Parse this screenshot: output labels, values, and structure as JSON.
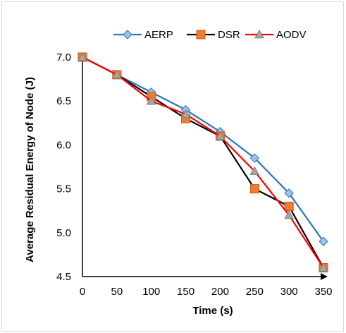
{
  "chart_data": {
    "type": "line",
    "xlabel": "Time (s)",
    "ylabel": "Average Residual Energy  of Node  (J)",
    "x": [
      0,
      50,
      100,
      150,
      200,
      250,
      300,
      350
    ],
    "xlim": [
      0,
      350
    ],
    "ylim": [
      4.5,
      7.0
    ],
    "x_ticks": [
      "0",
      "50",
      "100",
      "150",
      "200",
      "250",
      "300",
      "350"
    ],
    "y_ticks": [
      "4.5",
      "5.0",
      "5.5",
      "6.0",
      "6.5",
      "7.0"
    ],
    "grid": false,
    "legend_position": "top",
    "series": [
      {
        "name": "AERP",
        "color": "#2e75b6",
        "marker": "diamond",
        "marker_fill": "#9dc3e6",
        "values": [
          7.0,
          6.8,
          6.6,
          6.4,
          6.15,
          5.85,
          5.45,
          4.9
        ]
      },
      {
        "name": "DSR",
        "color": "#000000",
        "marker": "square",
        "marker_fill": "#ed7d31",
        "values": [
          7.0,
          6.8,
          6.55,
          6.3,
          6.1,
          5.5,
          5.3,
          4.6
        ]
      },
      {
        "name": "AODV",
        "color": "#ff0000",
        "marker": "triangle",
        "marker_fill": "#a6a6a6",
        "values": [
          7.0,
          6.8,
          6.5,
          6.35,
          6.1,
          5.7,
          5.2,
          4.6
        ]
      }
    ]
  }
}
